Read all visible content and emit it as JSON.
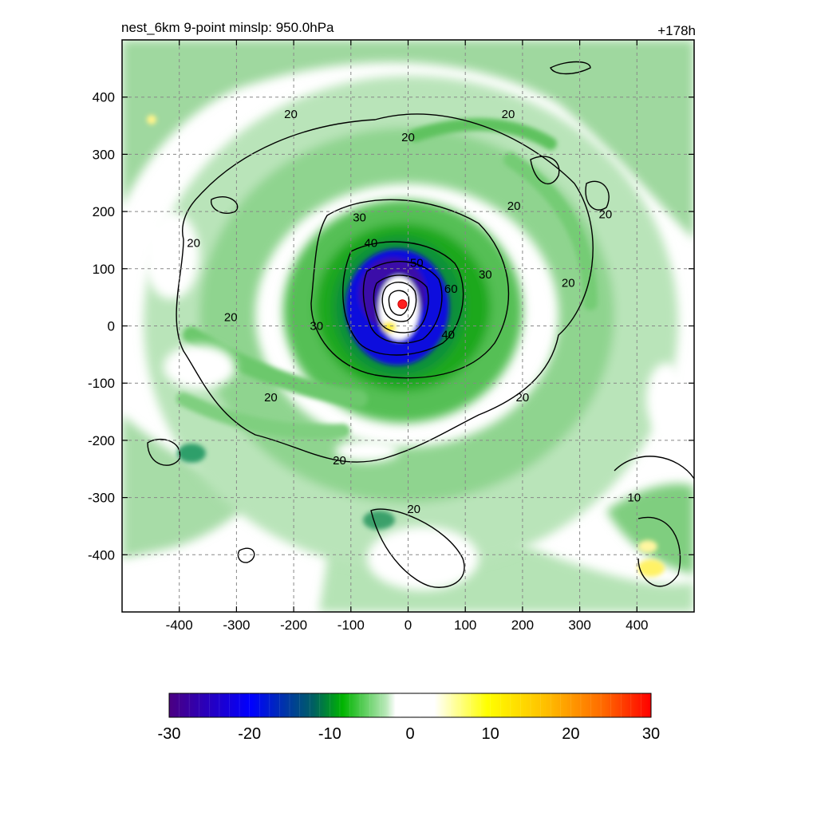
{
  "chart_data": {
    "type": "heatmap",
    "title_left": "nest_6km  9-point minslp: 950.0hPa",
    "title_right": "+178h",
    "xlabel": "",
    "ylabel": "",
    "xlim": [
      -500,
      500
    ],
    "ylim": [
      -500,
      500
    ],
    "x_ticks": [
      -400,
      -300,
      -200,
      -100,
      0,
      100,
      200,
      300,
      400
    ],
    "y_ticks": [
      400,
      300,
      200,
      100,
      0,
      -100,
      -200,
      -300,
      -400
    ],
    "grid": true,
    "storm_center": {
      "x": -10,
      "y": 38
    },
    "field": {
      "inner_core_min": -30,
      "rainband_values": [
        -12,
        -8,
        -6
      ],
      "positive_patches": [
        {
          "x": 420,
          "y": -420,
          "value": 8
        },
        {
          "x": 430,
          "y": -380,
          "value": 5
        },
        {
          "x": -20,
          "y": 0,
          "value": 6
        }
      ]
    },
    "contour_levels": [
      10,
      20,
      30,
      40,
      50,
      60
    ],
    "contour_labels": [
      {
        "text": "20",
        "x": -205,
        "y": 370
      },
      {
        "text": "20",
        "x": 0,
        "y": 330
      },
      {
        "text": "20",
        "x": 175,
        "y": 370
      },
      {
        "text": "20",
        "x": 185,
        "y": 210
      },
      {
        "text": "20",
        "x": 345,
        "y": 195
      },
      {
        "text": "20",
        "x": 280,
        "y": 75
      },
      {
        "text": "20",
        "x": -375,
        "y": 145
      },
      {
        "text": "20",
        "x": -310,
        "y": 15
      },
      {
        "text": "20",
        "x": -240,
        "y": -125
      },
      {
        "text": "20",
        "x": 200,
        "y": -125
      },
      {
        "text": "20",
        "x": -120,
        "y": -235
      },
      {
        "text": "20",
        "x": 10,
        "y": -320
      },
      {
        "text": "30",
        "x": -85,
        "y": 190
      },
      {
        "text": "30",
        "x": -160,
        "y": 0
      },
      {
        "text": "30",
        "x": 135,
        "y": 90
      },
      {
        "text": "40",
        "x": -65,
        "y": 145
      },
      {
        "text": "40",
        "x": 70,
        "y": -15
      },
      {
        "text": "50",
        "x": 15,
        "y": 110
      },
      {
        "text": "60",
        "x": 75,
        "y": 65
      },
      {
        "text": "10",
        "x": 395,
        "y": -300
      }
    ],
    "colorbar": {
      "min": -30,
      "max": 30,
      "tick_labels": [
        "-30",
        "-20",
        "-10",
        "0",
        "10",
        "20",
        "30"
      ],
      "colors": [
        "#4b0082",
        "#0000ff",
        "#00b400",
        "#ffffff",
        "#ffff00",
        "#ff9a00",
        "#ff0000"
      ]
    }
  }
}
